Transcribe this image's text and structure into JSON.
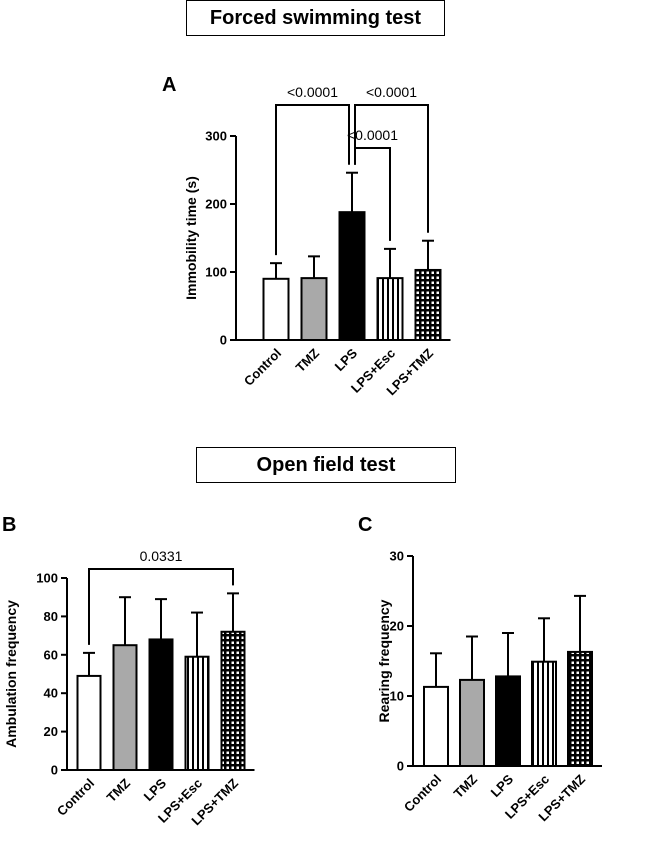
{
  "titles": {
    "forced_swimming": "Forced swimming test",
    "open_field": "Open field test"
  },
  "colors": {
    "control": "#ffffff",
    "tmz": "#a9a9a9",
    "lps": "#000000",
    "stroke": "#000000"
  },
  "chart_data": [
    {
      "type": "bar",
      "panel": "A",
      "categories": [
        "Control",
        "TMZ",
        "LPS",
        "LPS+Esc",
        "LPS+TMZ"
      ],
      "values": [
        90,
        91,
        188,
        91,
        103
      ],
      "errors": [
        23,
        32,
        58,
        43,
        43
      ],
      "fills": [
        "white",
        "gray",
        "black",
        "vertical-stripes",
        "grid"
      ],
      "ylabel": "Immobility time (s)",
      "ylim": [
        0,
        300
      ],
      "yticks": [
        0,
        100,
        200,
        300
      ],
      "significance": [
        {
          "from": 0,
          "to": 2,
          "label": "<0.0001"
        },
        {
          "from": 2,
          "to": 4,
          "label": "<0.0001"
        },
        {
          "from": 2,
          "to": 3,
          "label": "<0.0001"
        }
      ]
    },
    {
      "type": "bar",
      "panel": "B",
      "categories": [
        "Control",
        "TMZ",
        "LPS",
        "LPS+Esc",
        "LPS+TMZ"
      ],
      "values": [
        49,
        65,
        68,
        59,
        72
      ],
      "errors": [
        12,
        25,
        21,
        23,
        20
      ],
      "fills": [
        "white",
        "gray",
        "black",
        "vertical-stripes",
        "grid"
      ],
      "ylabel": "Ambulation frequency",
      "ylim": [
        0,
        100
      ],
      "yticks": [
        0,
        20,
        40,
        60,
        80,
        100
      ],
      "significance": [
        {
          "from": 0,
          "to": 4,
          "label": "0.0331"
        }
      ]
    },
    {
      "type": "bar",
      "panel": "C",
      "categories": [
        "Control",
        "TMZ",
        "LPS",
        "LPS+Esc",
        "LPS+TMZ"
      ],
      "values": [
        11.3,
        12.3,
        12.8,
        14.9,
        16.3
      ],
      "errors": [
        4.8,
        6.2,
        6.2,
        6.2,
        8.0
      ],
      "fills": [
        "white",
        "gray",
        "black",
        "vertical-stripes",
        "grid"
      ],
      "ylabel": "Rearing frequency",
      "ylim": [
        0,
        30
      ],
      "yticks": [
        0,
        10,
        20,
        30
      ],
      "significance": []
    }
  ]
}
